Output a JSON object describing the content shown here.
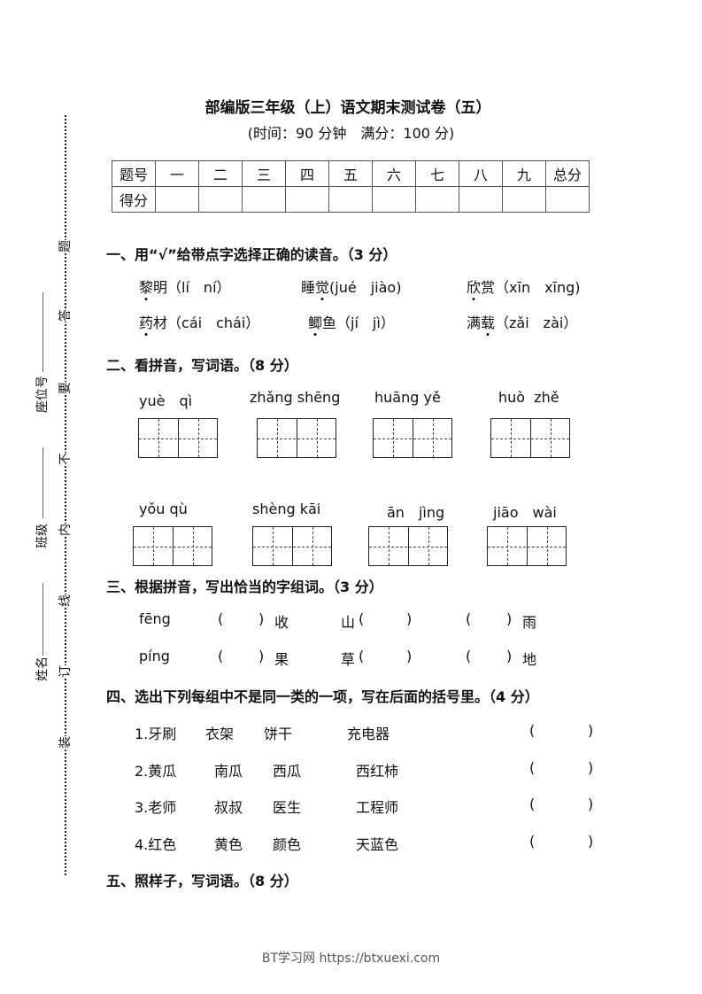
{
  "title": "部编版三年级（上）语文期末测试卷（五）",
  "subtitle": "(时间：90 分钟　满分：100 分)",
  "score_table": {
    "header": [
      "题号",
      "一",
      "二",
      "三",
      "四",
      "五",
      "六",
      "七",
      "八",
      "九",
      "总分"
    ],
    "row_label": "得分"
  },
  "margin": {
    "fields": [
      "座位号",
      "班级",
      "姓名"
    ],
    "seal_chars": [
      "题",
      "答",
      "要",
      "不",
      "内",
      "线",
      "订",
      "装"
    ]
  },
  "section1": {
    "heading": "一、用“√”给带点字选择正确的读音。（3 分）",
    "items": [
      {
        "c1": "黎",
        "c2": "明",
        "options": "（lí　ní）"
      },
      {
        "c1": "睡",
        "c2": "觉",
        "options": "(jué　jiào)"
      },
      {
        "c1": "欣",
        "c2": "赏",
        "options": "（xīn　xīng)"
      },
      {
        "c1": "药",
        "c2": "材",
        "options": "（cái　chái）"
      },
      {
        "c1": "鲫",
        "c2": "鱼",
        "options": "（jí　jì）"
      },
      {
        "c1": "满",
        "c2": "载",
        "options": "（zǎi　zài）"
      }
    ]
  },
  "section2": {
    "heading": "二、看拼音，写词语。（8 分）",
    "pinyin": [
      "yuè　qì",
      "zhǎng shēng",
      "huāng yě",
      "huò  zhě",
      "yǒu qù",
      "shèng kāi",
      "ān　jìng",
      "jiāo　wài"
    ]
  },
  "section3": {
    "heading": "三、根据拼音，写出恰当的字组词。（3 分）",
    "rows": [
      {
        "pinyin": "fēng",
        "a": "收",
        "b": "山",
        "c": "雨"
      },
      {
        "pinyin": "píng",
        "a": "果",
        "b": "草",
        "c": "地"
      }
    ]
  },
  "section4": {
    "heading": "四、选出下列每组中不是同一类的一项，写在后面的括号里。（4 分）",
    "rows": [
      [
        "1.牙刷",
        "衣架",
        "饼干",
        "充电器"
      ],
      [
        "2.黄瓜",
        "南瓜",
        "西瓜",
        "西红柿"
      ],
      [
        "3.老师",
        "叔叔",
        "医生",
        "工程师"
      ],
      [
        "4.红色",
        "黄色",
        "颜色",
        "天蓝色"
      ]
    ]
  },
  "section5": {
    "heading": "五、照样子，写词语。（8 分）"
  },
  "footer": "BT学习网 https://btxuexi.com"
}
